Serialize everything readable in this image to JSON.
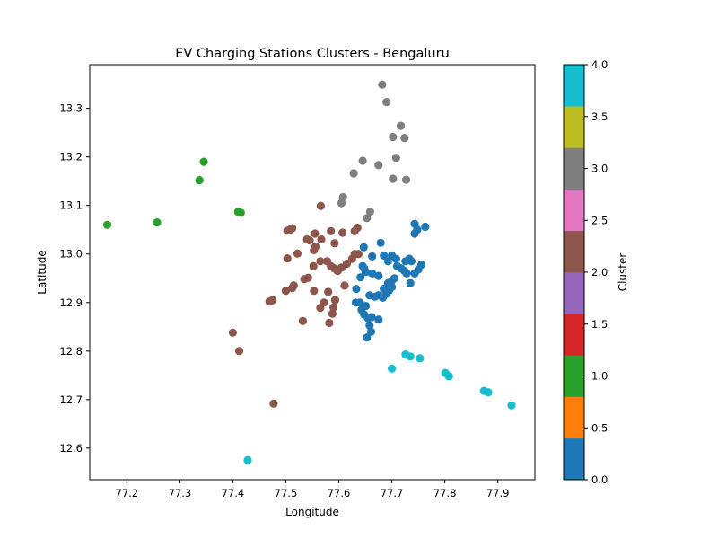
{
  "chart_data": {
    "type": "scatter",
    "title": "EV Charging Stations Clusters - Bengaluru",
    "xlabel": "Longitude",
    "ylabel": "Latitude",
    "xlim": [
      77.13,
      77.97
    ],
    "ylim": [
      12.535,
      13.39
    ],
    "xticks": [
      77.2,
      77.3,
      77.4,
      77.5,
      77.6,
      77.7,
      77.8,
      77.9
    ],
    "yticks": [
      12.6,
      12.7,
      12.8,
      12.9,
      13.0,
      13.1,
      13.2,
      13.3
    ],
    "grid": false,
    "colorbar": {
      "label": "Cluster",
      "range": [
        0,
        4
      ],
      "ticks": [
        "0.0",
        "0.5",
        "1.0",
        "1.5",
        "2.0",
        "2.5",
        "3.0",
        "3.5",
        "4.0"
      ],
      "colors": [
        "#1f77b4",
        "#ff7f0e",
        "#2ca02c",
        "#d62728",
        "#9467bd",
        "#8c564b",
        "#e377c2",
        "#7f7f7f",
        "#bcbd22",
        "#17becf"
      ]
    },
    "cluster_colors": {
      "0": "#1f77b4",
      "1": "#2ca02c",
      "2": "#8c564b",
      "3": "#7f7f7f",
      "4": "#17becf"
    },
    "series": [
      {
        "cluster": 1,
        "points": [
          [
            77.163,
            13.06
          ],
          [
            77.257,
            13.065
          ],
          [
            77.337,
            13.152
          ],
          [
            77.345,
            13.19
          ],
          [
            77.41,
            13.087
          ],
          [
            77.415,
            13.085
          ]
        ]
      },
      {
        "cluster": 3,
        "points": [
          [
            77.682,
            13.349
          ],
          [
            77.69,
            13.313
          ],
          [
            77.717,
            13.264
          ],
          [
            77.702,
            13.241
          ],
          [
            77.724,
            13.239
          ],
          [
            77.708,
            13.198
          ],
          [
            77.645,
            13.192
          ],
          [
            77.675,
            13.183
          ],
          [
            77.628,
            13.166
          ],
          [
            77.702,
            13.155
          ],
          [
            77.727,
            13.153
          ],
          [
            77.608,
            13.117
          ],
          [
            77.605,
            13.105
          ],
          [
            77.659,
            13.087
          ],
          [
            77.653,
            13.074
          ]
        ]
      },
      {
        "cluster": 4,
        "points": [
          [
            77.428,
            12.575
          ],
          [
            77.7,
            12.764
          ],
          [
            77.726,
            12.793
          ],
          [
            77.735,
            12.789
          ],
          [
            77.753,
            12.785
          ],
          [
            77.801,
            12.755
          ],
          [
            77.808,
            12.748
          ],
          [
            77.874,
            12.718
          ],
          [
            77.882,
            12.715
          ],
          [
            77.926,
            12.688
          ]
        ]
      },
      {
        "cluster": 2,
        "points": [
          [
            77.477,
            12.692
          ],
          [
            77.412,
            12.8
          ],
          [
            77.4,
            12.838
          ],
          [
            77.532,
            12.862
          ],
          [
            77.582,
            12.858
          ],
          [
            77.588,
            12.877
          ],
          [
            77.59,
            12.89
          ],
          [
            77.565,
            12.889
          ],
          [
            77.572,
            12.9
          ],
          [
            77.593,
            12.905
          ],
          [
            77.469,
            12.902
          ],
          [
            77.475,
            12.905
          ],
          [
            77.5,
            12.924
          ],
          [
            77.512,
            12.93
          ],
          [
            77.515,
            12.935
          ],
          [
            77.553,
            12.924
          ],
          [
            77.58,
            12.922
          ],
          [
            77.535,
            12.948
          ],
          [
            77.542,
            12.951
          ],
          [
            77.611,
            12.935
          ],
          [
            77.552,
            12.975
          ],
          [
            77.565,
            12.985
          ],
          [
            77.578,
            12.985
          ],
          [
            77.585,
            12.975
          ],
          [
            77.592,
            12.97
          ],
          [
            77.598,
            12.965
          ],
          [
            77.605,
            12.972
          ],
          [
            77.615,
            12.98
          ],
          [
            77.625,
            12.99
          ],
          [
            77.63,
            13.0
          ],
          [
            77.637,
            13.0
          ],
          [
            77.503,
            12.991
          ],
          [
            77.522,
            13.001
          ],
          [
            77.553,
            13.008
          ],
          [
            77.556,
            13.015
          ],
          [
            77.54,
            13.03
          ],
          [
            77.545,
            13.028
          ],
          [
            77.567,
            13.03
          ],
          [
            77.555,
            13.042
          ],
          [
            77.592,
            13.022
          ],
          [
            77.585,
            13.047
          ],
          [
            77.607,
            13.044
          ],
          [
            77.63,
            13.047
          ],
          [
            77.635,
            13.054
          ],
          [
            77.503,
            13.048
          ],
          [
            77.508,
            13.05
          ],
          [
            77.512,
            13.053
          ],
          [
            77.566,
            13.099
          ]
        ]
      },
      {
        "cluster": 0,
        "points": [
          [
            77.653,
            12.828
          ],
          [
            77.661,
            12.84
          ],
          [
            77.658,
            12.853
          ],
          [
            77.675,
            12.865
          ],
          [
            77.648,
            12.875
          ],
          [
            77.655,
            12.868
          ],
          [
            77.662,
            12.87
          ],
          [
            77.643,
            12.885
          ],
          [
            77.651,
            12.893
          ],
          [
            77.64,
            12.9
          ],
          [
            77.632,
            12.9
          ],
          [
            77.658,
            12.915
          ],
          [
            77.668,
            12.912
          ],
          [
            77.675,
            12.915
          ],
          [
            77.683,
            12.91
          ],
          [
            77.69,
            12.918
          ],
          [
            77.695,
            12.925
          ],
          [
            77.7,
            12.932
          ],
          [
            77.685,
            12.928
          ],
          [
            77.693,
            12.94
          ],
          [
            77.7,
            12.945
          ],
          [
            77.705,
            12.95
          ],
          [
            77.633,
            12.928
          ],
          [
            77.641,
            12.952
          ],
          [
            77.651,
            12.963
          ],
          [
            77.663,
            12.96
          ],
          [
            77.675,
            12.955
          ],
          [
            77.71,
            12.975
          ],
          [
            77.718,
            12.97
          ],
          [
            77.724,
            12.965
          ],
          [
            77.728,
            12.96
          ],
          [
            77.735,
            12.94
          ],
          [
            77.743,
            12.96
          ],
          [
            77.75,
            12.968
          ],
          [
            77.756,
            12.978
          ],
          [
            77.733,
            12.99
          ],
          [
            77.726,
            12.985
          ],
          [
            77.737,
            12.985
          ],
          [
            77.7,
            12.997
          ],
          [
            77.708,
            12.99
          ],
          [
            77.693,
            12.985
          ],
          [
            77.685,
            12.997
          ],
          [
            77.663,
            12.995
          ],
          [
            77.645,
            12.975
          ],
          [
            77.648,
            12.97
          ],
          [
            77.679,
            13.023
          ],
          [
            77.647,
            13.014
          ],
          [
            77.743,
            13.042
          ],
          [
            77.748,
            13.05
          ],
          [
            77.743,
            13.062
          ],
          [
            77.763,
            13.056
          ]
        ]
      }
    ]
  }
}
